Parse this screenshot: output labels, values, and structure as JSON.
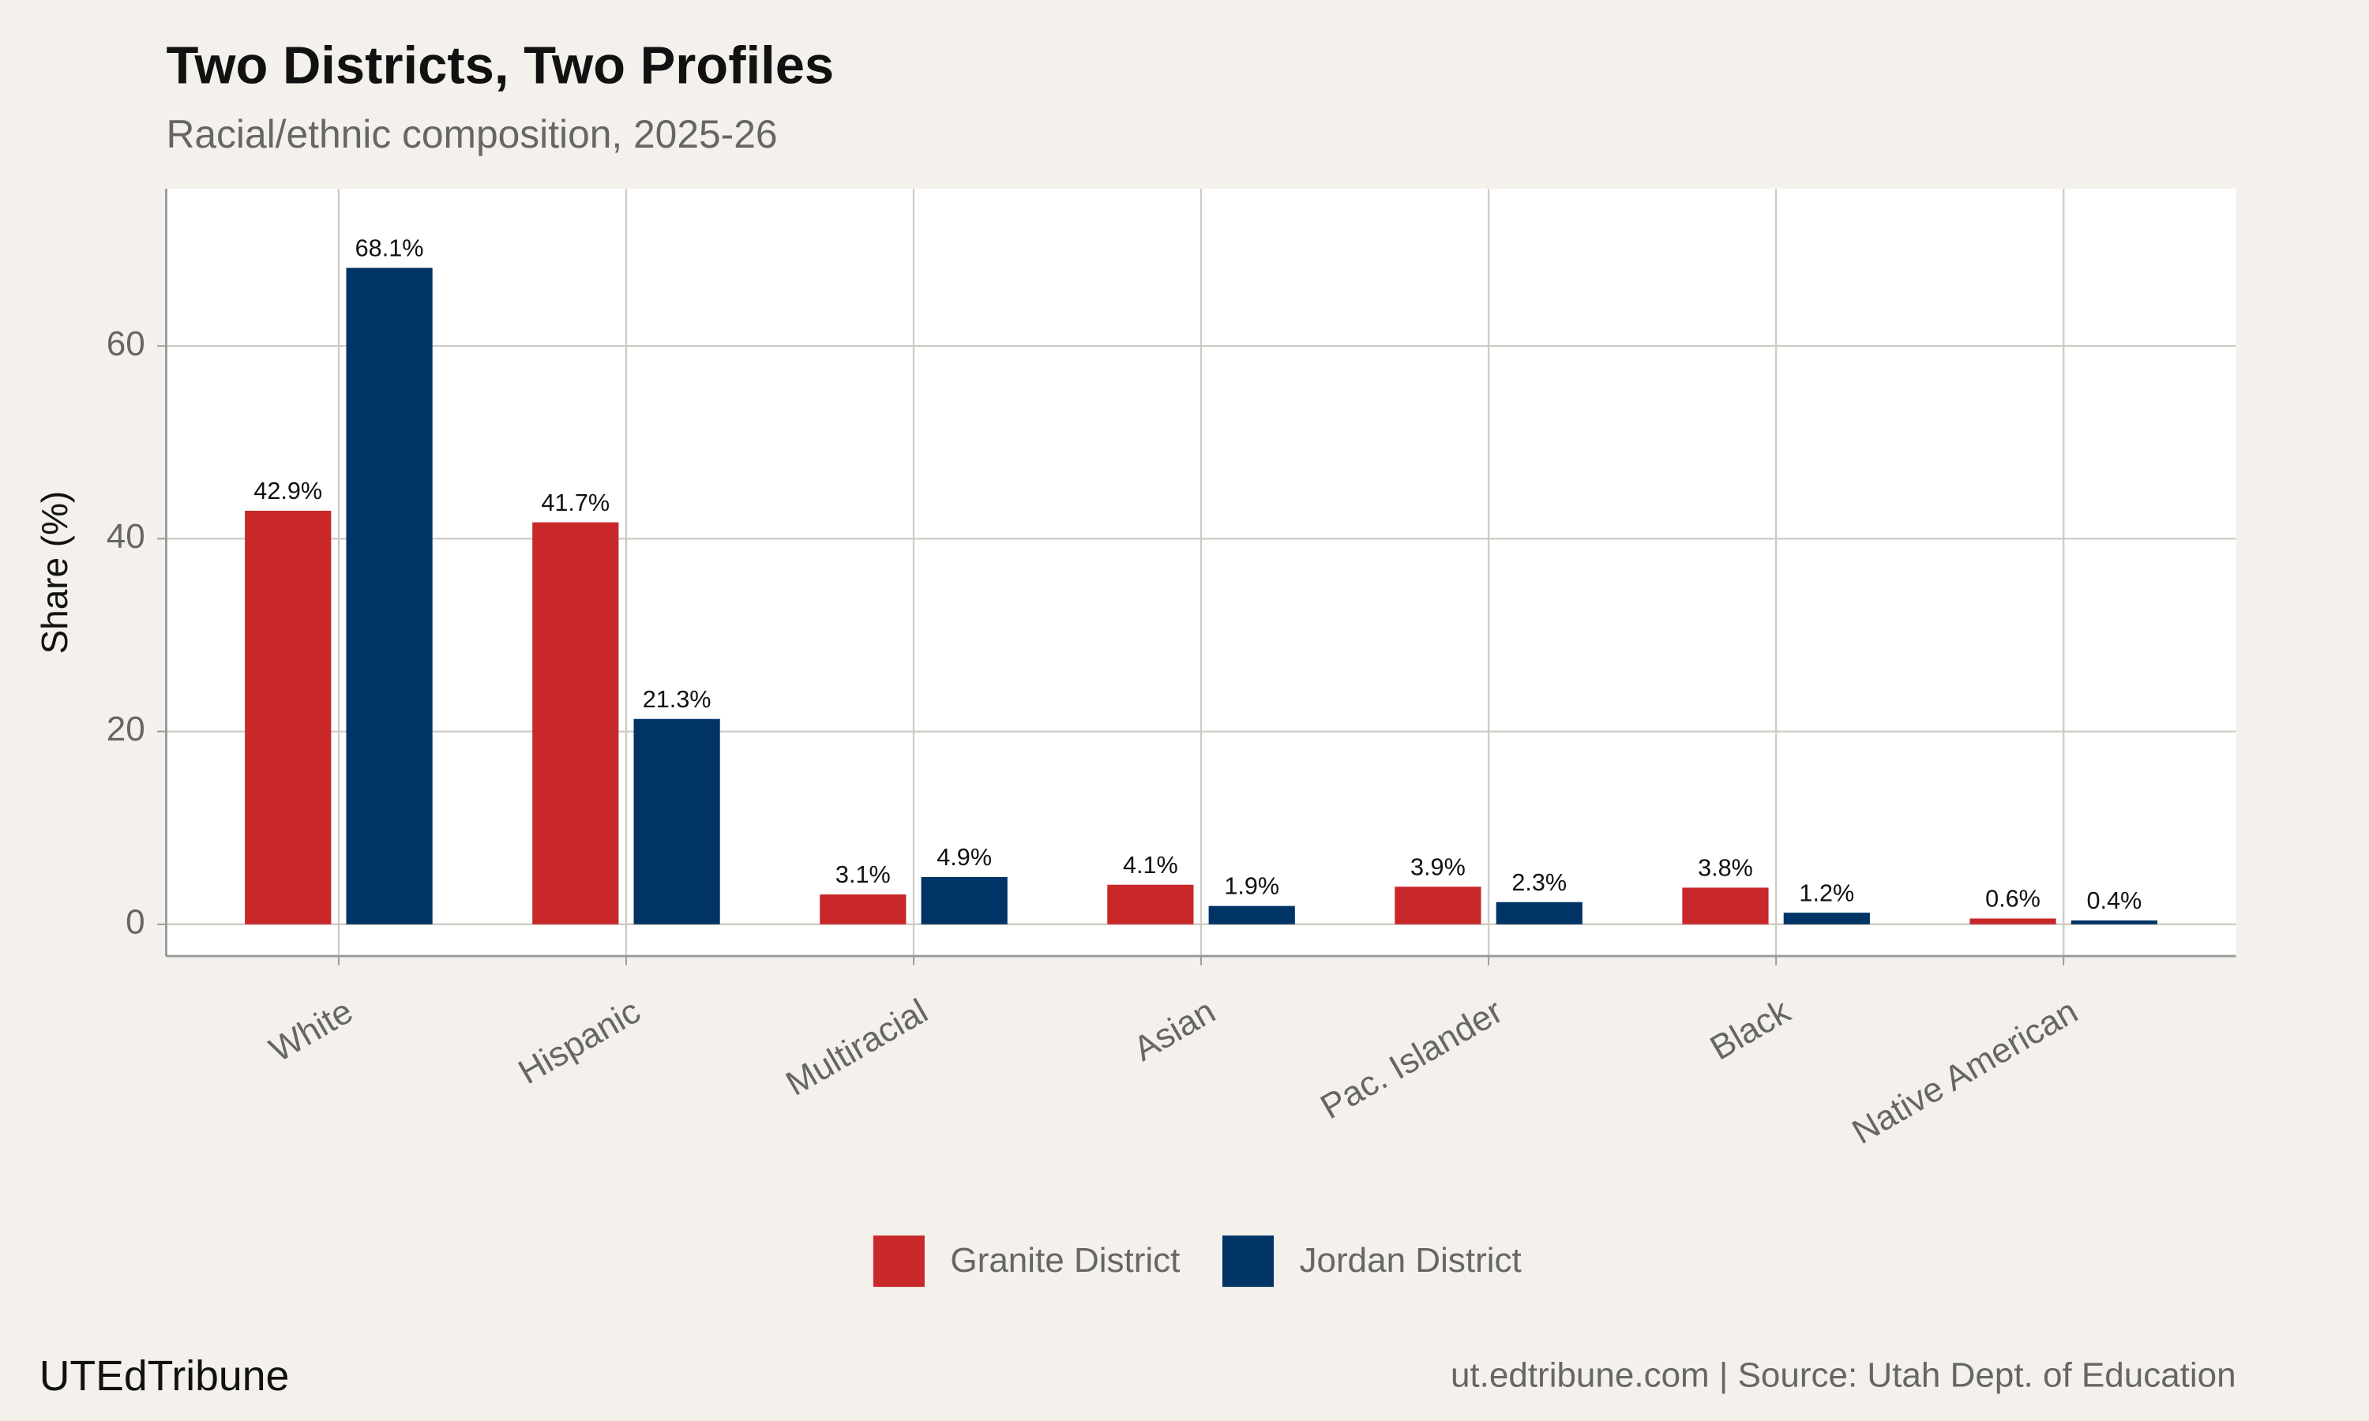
{
  "chart_data": {
    "type": "bar",
    "title": "Two Districts, Two Profiles",
    "subtitle": "Racial/ethnic composition, 2025-26",
    "y_label": "Share (%)",
    "categories": [
      "White",
      "Hispanic",
      "Multiracial",
      "Asian",
      "Pac. Islander",
      "Black",
      "Native American"
    ],
    "series": [
      {
        "name": "Granite District",
        "color": "#c8282a",
        "values": [
          42.9,
          41.7,
          3.1,
          4.1,
          3.9,
          3.8,
          0.6
        ],
        "value_labels": [
          "42.9%",
          "41.7%",
          "3.1%",
          "4.1%",
          "3.9%",
          "3.8%",
          "0.6%"
        ]
      },
      {
        "name": "Jordan District",
        "color": "#003366",
        "values": [
          68.1,
          21.3,
          4.9,
          1.9,
          2.3,
          1.2,
          0.4
        ],
        "value_labels": [
          "68.1%",
          "21.3%",
          "4.9%",
          "1.9%",
          "2.3%",
          "1.2%",
          "0.4%"
        ]
      }
    ],
    "ylim": [
      -3.3,
      76.3
    ],
    "yticks": [
      0,
      20,
      40,
      60
    ],
    "grid": true,
    "legend": "bottom",
    "brand": "UTEdTribune",
    "caption": "ut.edtribune.com | Source: Utah Dept. of Education"
  }
}
